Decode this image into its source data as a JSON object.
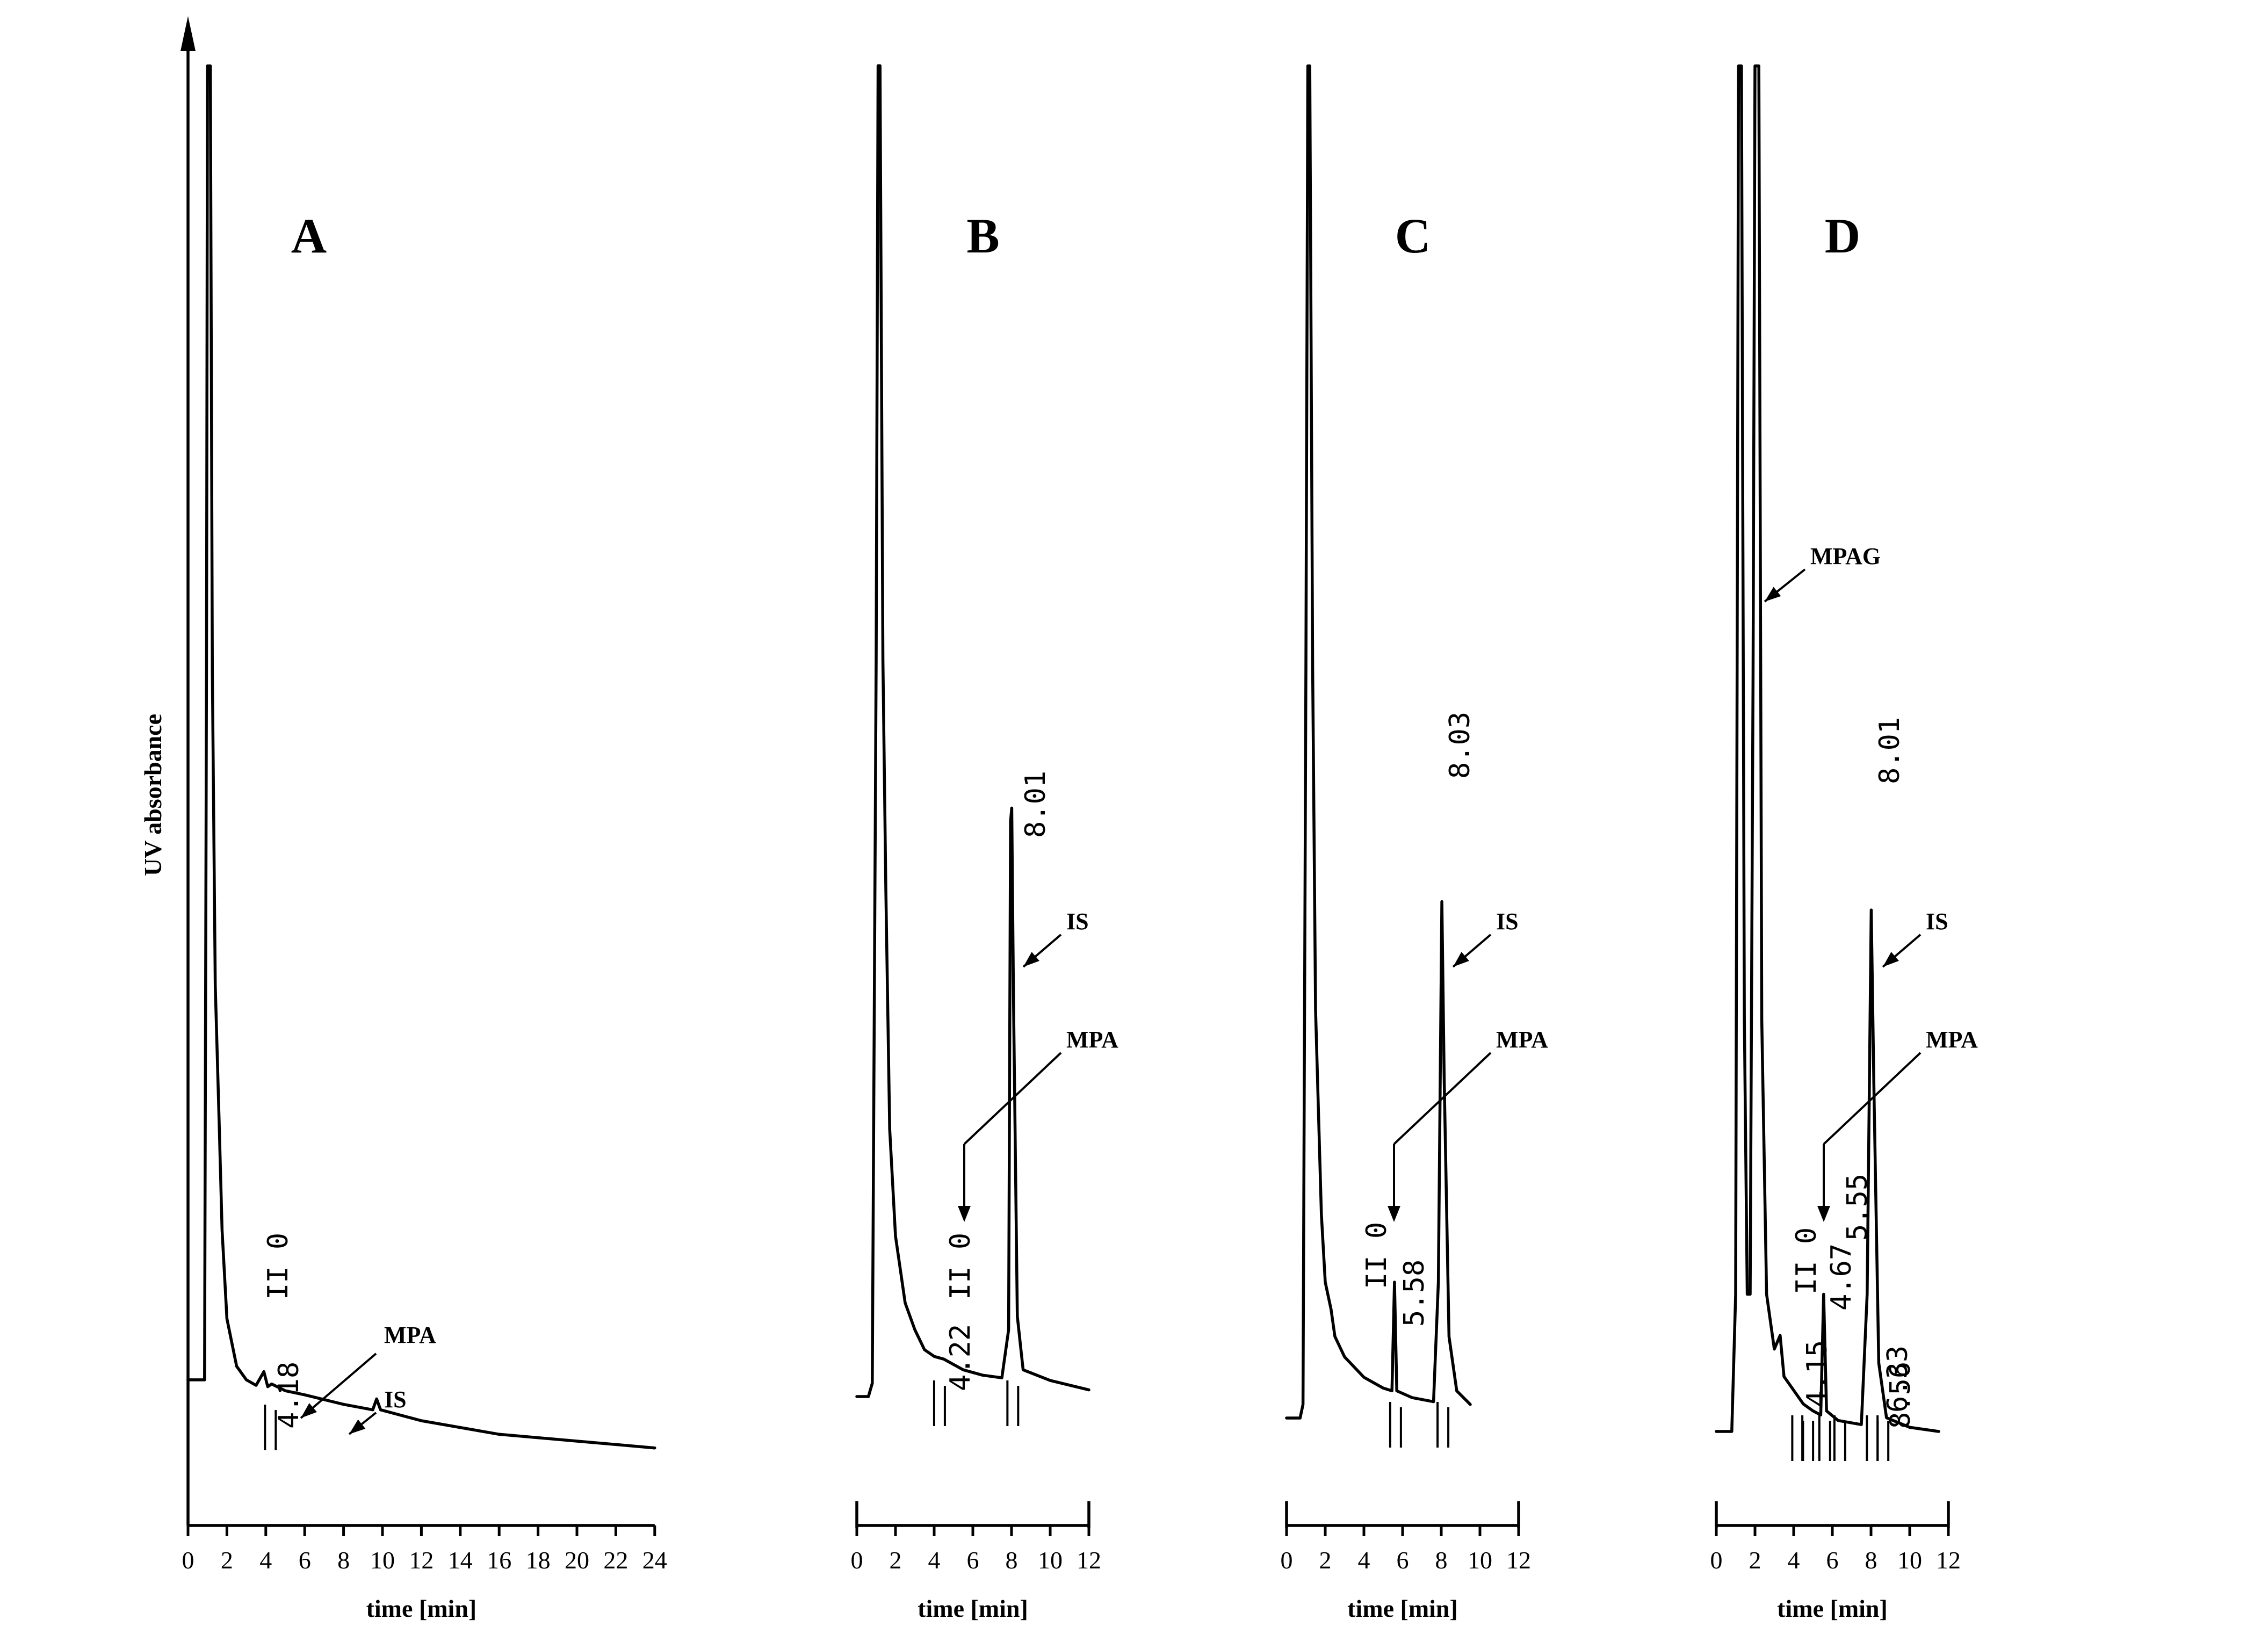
{
  "chart_data": [
    {
      "panel": "A",
      "type": "line",
      "xlabel": "time [min]",
      "ylabel": "UV absorbance",
      "xlim": [
        0,
        24
      ],
      "xticks": [
        "0",
        "2",
        "4",
        "6",
        "8",
        "10",
        "12",
        "14",
        "16",
        "18",
        "20",
        "22",
        "24"
      ],
      "retention_labels": [
        "II 0",
        "4.18"
      ],
      "annotations": [
        "MPA",
        "IS"
      ],
      "trace": [
        [
          0,
          0.03
        ],
        [
          0.85,
          0.03
        ],
        [
          0.95,
          0.55
        ],
        [
          1.0,
          0.995
        ],
        [
          1.15,
          0.995
        ],
        [
          1.25,
          0.55
        ],
        [
          1.4,
          0.32
        ],
        [
          1.6,
          0.22
        ],
        [
          1.75,
          0.14
        ],
        [
          2.0,
          0.075
        ],
        [
          2.5,
          0.04
        ],
        [
          3.0,
          0.03
        ],
        [
          3.5,
          0.026
        ],
        [
          3.9,
          0.036
        ],
        [
          4.1,
          0.025
        ],
        [
          4.3,
          0.027
        ],
        [
          5.0,
          0.022
        ],
        [
          6.0,
          0.019
        ],
        [
          8.0,
          0.012
        ],
        [
          9.5,
          0.008
        ],
        [
          9.7,
          0.016
        ],
        [
          9.9,
          0.008
        ],
        [
          12,
          0.0
        ],
        [
          16,
          -0.01
        ],
        [
          20,
          -0.015
        ],
        [
          24,
          -0.02
        ]
      ]
    },
    {
      "panel": "B",
      "type": "line",
      "xlabel": "time [min]",
      "xlim": [
        0,
        12
      ],
      "xticks": [
        "0",
        "2",
        "4",
        "6",
        "8",
        "10",
        "12"
      ],
      "retention_labels": [
        "II 0",
        "4.22",
        "8.01"
      ],
      "annotations": [
        "MPA",
        "IS"
      ],
      "trace": [
        [
          0,
          0.0
        ],
        [
          0.6,
          0.0
        ],
        [
          0.8,
          0.01
        ],
        [
          1.0,
          0.55
        ],
        [
          1.1,
          0.995
        ],
        [
          1.2,
          0.995
        ],
        [
          1.35,
          0.55
        ],
        [
          1.5,
          0.38
        ],
        [
          1.7,
          0.2
        ],
        [
          2.0,
          0.12
        ],
        [
          2.5,
          0.07
        ],
        [
          3.0,
          0.05
        ],
        [
          3.5,
          0.035
        ],
        [
          4.0,
          0.03
        ],
        [
          4.5,
          0.028
        ],
        [
          5.5,
          0.02
        ],
        [
          6.5,
          0.016
        ],
        [
          7.5,
          0.014
        ],
        [
          7.85,
          0.05
        ],
        [
          7.95,
          0.43
        ],
        [
          8.01,
          0.44
        ],
        [
          8.1,
          0.3
        ],
        [
          8.3,
          0.06
        ],
        [
          8.6,
          0.02
        ],
        [
          10,
          0.012
        ],
        [
          12,
          0.005
        ]
      ]
    },
    {
      "panel": "C",
      "type": "line",
      "xlabel": "time [min]",
      "xlim": [
        0,
        12
      ],
      "xticks": [
        "0",
        "2",
        "4",
        "6",
        "8",
        "10",
        "12"
      ],
      "retention_labels": [
        "II 0",
        "5.58",
        "8.03"
      ],
      "annotations": [
        "MPA",
        "IS"
      ],
      "trace": [
        [
          0,
          0.0
        ],
        [
          0.7,
          0.0
        ],
        [
          0.85,
          0.01
        ],
        [
          1.0,
          0.55
        ],
        [
          1.1,
          0.995
        ],
        [
          1.2,
          0.995
        ],
        [
          1.35,
          0.55
        ],
        [
          1.5,
          0.3
        ],
        [
          1.8,
          0.15
        ],
        [
          2.0,
          0.1
        ],
        [
          2.3,
          0.08
        ],
        [
          2.5,
          0.06
        ],
        [
          3.0,
          0.045
        ],
        [
          4.0,
          0.03
        ],
        [
          5.0,
          0.022
        ],
        [
          5.45,
          0.02
        ],
        [
          5.58,
          0.1
        ],
        [
          5.7,
          0.02
        ],
        [
          6.5,
          0.015
        ],
        [
          7.6,
          0.012
        ],
        [
          7.85,
          0.1
        ],
        [
          8.03,
          0.38
        ],
        [
          8.15,
          0.25
        ],
        [
          8.4,
          0.06
        ],
        [
          8.8,
          0.02
        ],
        [
          9.5,
          0.01
        ]
      ]
    },
    {
      "panel": "D",
      "type": "line",
      "xlabel": "time [min]",
      "xlim": [
        0,
        12
      ],
      "xticks": [
        "0",
        "2",
        "4",
        "6",
        "8",
        "10",
        "12"
      ],
      "retention_labels": [
        "II 0",
        "4.15",
        "4.67",
        "5.55",
        "6.33",
        "8.56",
        "8.01"
      ],
      "annotations": [
        "MPAG",
        "MPA",
        "IS"
      ],
      "trace": [
        [
          0,
          0.0
        ],
        [
          0.8,
          0.0
        ],
        [
          1.0,
          0.1
        ],
        [
          1.15,
          0.995
        ],
        [
          1.3,
          0.995
        ],
        [
          1.45,
          0.3
        ],
        [
          1.6,
          0.1
        ],
        [
          1.75,
          0.1
        ],
        [
          1.9,
          0.55
        ],
        [
          2.0,
          0.995
        ],
        [
          2.2,
          0.995
        ],
        [
          2.35,
          0.3
        ],
        [
          2.6,
          0.1
        ],
        [
          3.0,
          0.06
        ],
        [
          3.3,
          0.07
        ],
        [
          3.5,
          0.04
        ],
        [
          4.0,
          0.03
        ],
        [
          4.5,
          0.02
        ],
        [
          5.0,
          0.015
        ],
        [
          5.4,
          0.012
        ],
        [
          5.55,
          0.1
        ],
        [
          5.7,
          0.015
        ],
        [
          6.3,
          0.008
        ],
        [
          7.5,
          0.005
        ],
        [
          7.8,
          0.1
        ],
        [
          8.01,
          0.38
        ],
        [
          8.15,
          0.25
        ],
        [
          8.4,
          0.05
        ],
        [
          8.8,
          0.01
        ],
        [
          10,
          0.003
        ],
        [
          11.5,
          0.0
        ]
      ]
    }
  ]
}
